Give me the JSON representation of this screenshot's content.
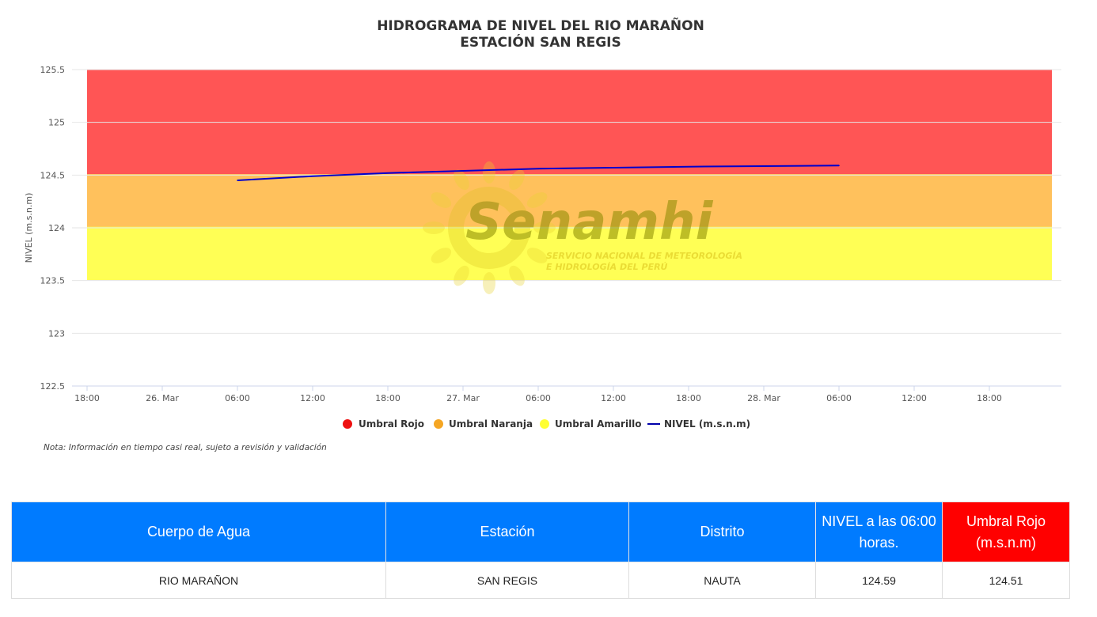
{
  "chart_data": {
    "type": "area",
    "title": "HIDROGRAMA DE NIVEL DEL RIO MARAÑON",
    "subtitle": "ESTACIÓN SAN REGIS",
    "ylabel": "NIVEL (m.s.n.m)",
    "ylim": [
      122.5,
      125.5
    ],
    "y_ticks": [
      "125.5",
      "125",
      "124.5",
      "124",
      "123.5",
      "123",
      "122.5"
    ],
    "x_ticks": [
      "18:00",
      "26. Mar",
      "06:00",
      "12:00",
      "18:00",
      "27. Mar",
      "06:00",
      "12:00",
      "18:00",
      "28. Mar",
      "06:00",
      "12:00",
      "18:00"
    ],
    "x_range_hours": [
      "25 Mar 18:00",
      "29 Mar 00:30"
    ],
    "bands": [
      {
        "name": "Umbral Rojo",
        "from": 124.51,
        "to": 125.5,
        "color": "#ff5555"
      },
      {
        "name": "Umbral Naranja",
        "from": 124.01,
        "to": 124.51,
        "color": "#ffc15c"
      },
      {
        "name": "Umbral Amarillo",
        "from": 123.51,
        "to": 124.01,
        "color": "#ffff55"
      }
    ],
    "series": [
      {
        "name": "NIVEL (m.s.n.m)",
        "color": "#0000cc",
        "x": [
          "26 Mar 06:00",
          "26 Mar 12:00",
          "26 Mar 18:00",
          "27 Mar 00:00",
          "27 Mar 06:00",
          "27 Mar 12:00",
          "27 Mar 18:00",
          "28 Mar 00:00",
          "28 Mar 06:00"
        ],
        "values": [
          124.45,
          124.49,
          124.52,
          124.54,
          124.56,
          124.57,
          124.58,
          124.585,
          124.59
        ]
      }
    ],
    "legend": [
      "Umbral Rojo",
      "Umbral Naranja",
      "Umbral Amarillo",
      "NIVEL (m.s.n.m)"
    ],
    "legend_colors": [
      "#ee1111",
      "#f5a623",
      "#ffff33",
      "#0000aa"
    ],
    "legend_position": "bottom-center",
    "grid": true,
    "note": "Nota: Información en tiempo casi real, sujeto a revisión y validación"
  },
  "watermark": {
    "logo_text": "Senamhi",
    "line1": "SERVICIO NACIONAL DE METEOROLOGÍA",
    "line2": "E HIDROLOGÍA DEL PERÚ"
  },
  "table": {
    "headers": [
      "Cuerpo de Agua",
      "Estación",
      "Distrito",
      "NIVEL a las 06:00 horas.",
      "Umbral Rojo (m.s.n.m)"
    ],
    "row": [
      "RIO MARAÑON",
      "SAN REGIS",
      "NAUTA",
      "124.59",
      "124.51"
    ],
    "header_color": "#007bff",
    "header_red_color": "#ff0000"
  }
}
